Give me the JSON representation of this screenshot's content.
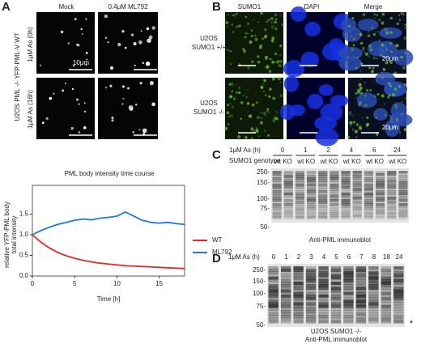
{
  "panel_a": {
    "label": "A",
    "column_headers": [
      "Mock",
      "0.4μM ML792"
    ],
    "row_labels": [
      "1μM As (0h)",
      "1μM As (16h)"
    ],
    "group_label": "U2OS PML -/- YFP-PML-V WT",
    "scale_bar": "10μm"
  },
  "chart_data": {
    "type": "line",
    "title": "PML body intensity time course",
    "x_label": "Time [h]",
    "y_label": [
      "relative YFP-PML body",
      "total intensity"
    ],
    "x": [
      0,
      1,
      2,
      3,
      4,
      5,
      6,
      7,
      8,
      9,
      10,
      11,
      12,
      13,
      14,
      15,
      16,
      17,
      18
    ],
    "series": [
      {
        "name": "WT",
        "color": "#e8262a",
        "values": [
          1.0,
          0.82,
          0.68,
          0.57,
          0.49,
          0.43,
          0.38,
          0.34,
          0.31,
          0.29,
          0.27,
          0.25,
          0.24,
          0.23,
          0.22,
          0.21,
          0.2,
          0.19,
          0.18
        ]
      },
      {
        "name": "ML792",
        "color": "#1f78d1",
        "values": [
          1.0,
          1.1,
          1.18,
          1.25,
          1.3,
          1.35,
          1.38,
          1.36,
          1.4,
          1.42,
          1.45,
          1.55,
          1.45,
          1.35,
          1.3,
          1.28,
          1.3,
          1.27,
          1.25
        ]
      }
    ],
    "xlim": [
      0,
      18
    ],
    "xticks": [
      0,
      5,
      10,
      15
    ],
    "ylim": [
      0,
      2
    ],
    "yticks": [
      {
        "value": 0,
        "label": "0.0"
      },
      {
        "value": 0.5,
        "label": "0.5"
      },
      {
        "value": 1,
        "label": "1.0"
      },
      {
        "value": 1.5,
        "label": "1.5"
      }
    ]
  },
  "panel_b": {
    "label": "B",
    "column_headers": [
      "SUMO1",
      "DAPI",
      "Merge"
    ],
    "row_labels": [
      [
        "U2OS",
        "SUMO1 +/+"
      ],
      [
        "U2OS",
        "SUMO1 -/-"
      ]
    ],
    "scale_bars": [
      "20μm",
      "20μm"
    ]
  },
  "panel_c": {
    "label": "C",
    "treatment": "1μM As (h)",
    "timepoints": [
      "0",
      "1",
      "2",
      "4",
      "6",
      "24"
    ],
    "genotype_label": "SUMO1 genotype",
    "genotypes": [
      "wt",
      "KO"
    ],
    "markers": [
      "250-",
      "150-",
      "100-",
      "75-",
      "50-"
    ],
    "caption": "Anti-PML immunoblot"
  },
  "panel_d": {
    "label": "D",
    "treatment": "1μM As (h)",
    "timepoints": [
      "0",
      "1",
      "2",
      "3",
      "4",
      "5",
      "6",
      "7",
      "8",
      "18",
      "24"
    ],
    "markers": [
      "250-",
      "150-",
      "100-",
      "75-",
      "50-"
    ],
    "caption": [
      "U2OS SUMO1 -/-",
      "Anti-PML immunoblot"
    ],
    "asterisk": "*"
  }
}
